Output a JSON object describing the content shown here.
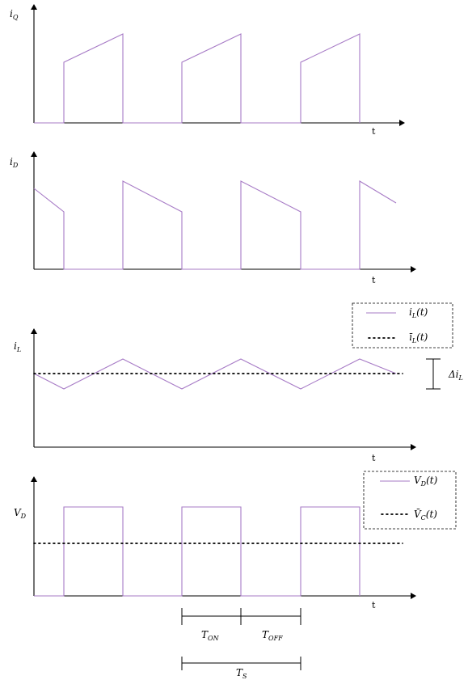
{
  "axis_time_label": "t",
  "panels": [
    {
      "y_label": "i",
      "y_label_sub": "Q"
    },
    {
      "y_label": "i",
      "y_label_sub": "D"
    },
    {
      "y_label": "i",
      "y_label_sub": "L"
    },
    {
      "y_label": "V",
      "y_label_sub": "D"
    }
  ],
  "inductor_legend": {
    "entries": [
      {
        "main": "i",
        "sub": "L",
        "suffix": "(t)",
        "style": "solid"
      },
      {
        "main": "ī",
        "sub": "L",
        "suffix": "(t)",
        "style": "dotted"
      }
    ]
  },
  "delta_label": {
    "main": "Δi",
    "sub": "L"
  },
  "voltage_legend": {
    "entries": [
      {
        "main": "V",
        "sub": "D",
        "suffix": "(t)",
        "style": "solid"
      },
      {
        "main": "V̄",
        "sub": "C",
        "suffix": "(t)",
        "style": "dotted"
      }
    ]
  },
  "timing": {
    "on": {
      "main": "T",
      "sub": "ON"
    },
    "off": {
      "main": "T",
      "sub": "OFF"
    },
    "period": {
      "main": "T",
      "sub": "S"
    }
  },
  "colors": {
    "waveform": "#a77bc6",
    "axis": "#000000"
  }
}
